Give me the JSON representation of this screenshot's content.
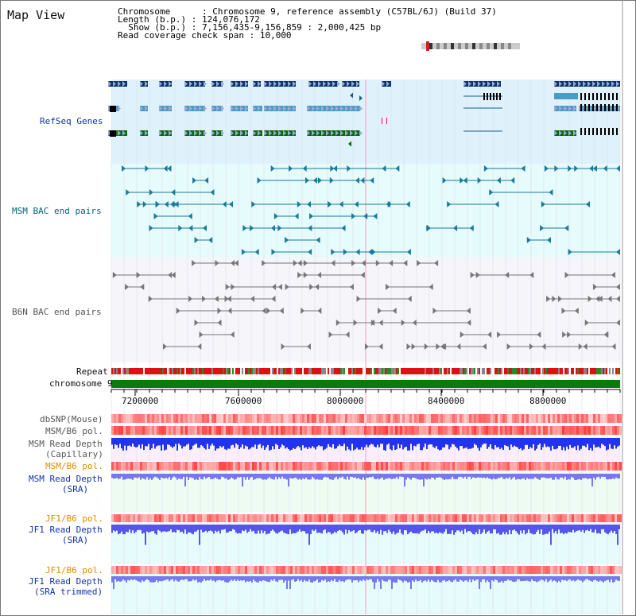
{
  "title": "Map View",
  "info": {
    "chromosome_label": "Chromosome",
    "chromosome_value": ": Chromosome 9, reference assembly (C57BL/6J) (Build 37)",
    "length_label": "Length (b.p.)",
    "length_value": ": 124,076,172",
    "show_label": "Show (b.p.)",
    "show_value": ": 7,156,435-9,156,859 : 2,000,425 bp",
    "coverage_label": "Read coverage check span",
    "coverage_value": ": 10,000"
  },
  "tracks": {
    "refseq": "RefSeq Genes",
    "msm_bac": "MSM BAC end pairs",
    "b6n_bac": "B6N BAC end pairs",
    "repeat": "Repeat",
    "chromosome": "chromosome 9",
    "dbsnp": "dbSNP(Mouse)",
    "msm_b6_pol_1": "MSM/B6 pol.",
    "msm_read_depth_cap": "MSM Read Depth",
    "msm_read_depth_cap_sub": "(Capillary)",
    "msm_b6_pol_2": "MSM/B6 pol.",
    "msm_read_depth_sra": "MSM Read Depth",
    "msm_read_depth_sra_sub": "(SRA)",
    "jf1_b6_pol_1": "JF1/B6 pol.",
    "jf1_read_depth_sra": "JF1 Read Depth",
    "jf1_read_depth_sra_sub": "(SRA)",
    "jf1_b6_pol_2": "JF1/B6 pol.",
    "jf1_read_depth_trim": "JF1 Read Depth",
    "jf1_read_depth_trim_sub": "(SRA trimmed)"
  },
  "axis": {
    "ticks": [
      "7200000",
      "7600000",
      "8000000",
      "8400000",
      "8800000"
    ],
    "range": [
      7156435,
      9156859
    ]
  },
  "colors": {
    "refseq_bg": "#dff2fb",
    "msm_bg": "#e6fbfb",
    "b6n_bg": "#f5f5fa",
    "gene_dark": "#0a3366",
    "gene_mid": "#4a9cc2",
    "gene_green": "#0a6a0a",
    "depth_blue": "#2233ee",
    "chrom_green": "#0a7a0a"
  }
}
